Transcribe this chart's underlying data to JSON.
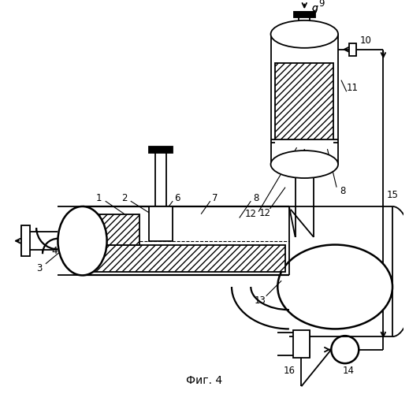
{
  "title": "Фиг. 4",
  "background_color": "#ffffff",
  "line_color": "#000000",
  "fig_width": 5.19,
  "fig_height": 5.0,
  "lw": 1.3,
  "label_fs": 8.5
}
